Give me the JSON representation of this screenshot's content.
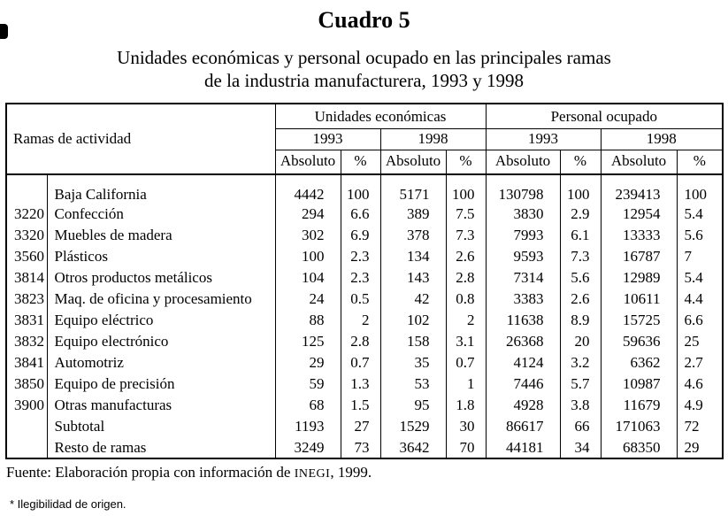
{
  "title": "Cuadro 5",
  "subtitle": [
    "Unidades económicas y personal ocupado en las principales ramas",
    "de la industria manufacturera,  1993 y 1998"
  ],
  "table": {
    "row_header_label": "Ramas de actividad",
    "groups": [
      "Unidades económicas",
      "Personal ocupado"
    ],
    "years": [
      "1993",
      "1998"
    ],
    "sub_headers": [
      "Absoluto",
      "%"
    ],
    "rows": [
      {
        "code": "",
        "name": "Baja California",
        "values": [
          "4442",
          "100",
          "5171",
          "100",
          "130798",
          "100",
          "239413",
          "100"
        ]
      },
      {
        "code": "3220",
        "name": "Confección",
        "values": [
          "294",
          "6.6",
          "389",
          "7.5",
          "3830",
          "2.9",
          "12954",
          "5.4"
        ]
      },
      {
        "code": "3320",
        "name": "Muebles de madera",
        "values": [
          "302",
          "6.9",
          "378",
          "7.3",
          "7993",
          "6.1",
          "13333",
          "5.6"
        ]
      },
      {
        "code": "3560",
        "name": "Plásticos",
        "values": [
          "100",
          "2.3",
          "134",
          "2.6",
          "9593",
          "7.3",
          "16787",
          "7"
        ]
      },
      {
        "code": "3814",
        "name": "Otros productos metálicos",
        "values": [
          "104",
          "2.3",
          "143",
          "2.8",
          "7314",
          "5.6",
          "12989",
          "5.4"
        ]
      },
      {
        "code": "3823",
        "name": "Maq. de oficina y procesamiento",
        "values": [
          "24",
          "0.5",
          "42",
          "0.8",
          "3383",
          "2.6",
          "10611",
          "4.4"
        ]
      },
      {
        "code": "3831",
        "name": "Equipo eléctrico",
        "values": [
          "88",
          "2",
          "102",
          "2",
          "11638",
          "8.9",
          "15725",
          "6.6"
        ]
      },
      {
        "code": "3832",
        "name": "Equipo electrónico",
        "values": [
          "125",
          "2.8",
          "158",
          "3.1",
          "26368",
          "20",
          "59636",
          "25"
        ]
      },
      {
        "code": "3841",
        "name": "Automotriz",
        "values": [
          "29",
          "0.7",
          "35",
          "0.7",
          "4124",
          "3.2",
          "6362",
          "2.7"
        ]
      },
      {
        "code": "3850",
        "name": "Equipo de precisión",
        "values": [
          "59",
          "1.3",
          "53",
          "1",
          "7446",
          "5.7",
          "10987",
          "4.6"
        ]
      },
      {
        "code": "3900",
        "name": "Otras manufacturas",
        "values": [
          "68",
          "1.5",
          "95",
          "1.8",
          "4928",
          "3.8",
          "11679",
          "4.9"
        ]
      },
      {
        "code": "",
        "name": "Subtotal",
        "values": [
          "1193",
          "27",
          "1529",
          "30",
          "86617",
          "66",
          "171063",
          "72"
        ]
      },
      {
        "code": "",
        "name": "Resto de ramas",
        "values": [
          "3249",
          "73",
          "3642",
          "70",
          "44181",
          "34",
          "68350",
          "29"
        ]
      }
    ]
  },
  "source": {
    "prefix": "Fuente: Elaboración propia con información de ",
    "inegi": "INEGI",
    "suffix": ", 1999."
  },
  "note": "* Ilegibilidad de origen."
}
